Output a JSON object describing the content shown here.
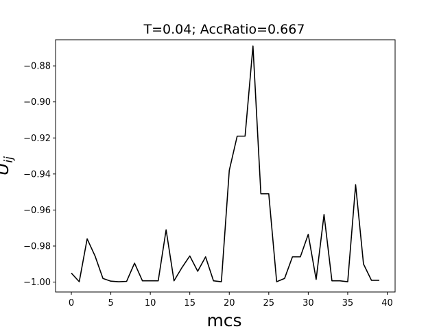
{
  "chart_data": {
    "type": "line",
    "title": "T=0.04; AccRatio=0.667",
    "xlabel": "mcs",
    "ylabel": "U",
    "ylabel_subscript": "ij",
    "xlim": [
      -2,
      41
    ],
    "ylim": [
      -1.0055,
      -0.8655
    ],
    "xticks": [
      0,
      5,
      10,
      15,
      20,
      25,
      30,
      35,
      40
    ],
    "xtick_labels": [
      "0",
      "5",
      "10",
      "15",
      "20",
      "25",
      "30",
      "35",
      "40"
    ],
    "yticks": [
      -1.0,
      -0.98,
      -0.96,
      -0.94,
      -0.92,
      -0.9,
      -0.88
    ],
    "ytick_labels": [
      "−1.00",
      "−0.98",
      "−0.96",
      "−0.94",
      "−0.92",
      "−0.90",
      "−0.88"
    ],
    "grid": false,
    "line_color": "#000000",
    "series": [
      {
        "x": [
          0,
          1,
          2,
          3,
          4,
          5,
          6,
          7,
          8,
          9,
          10,
          11,
          12,
          13,
          14,
          15,
          16,
          17,
          18,
          19,
          20,
          21,
          22,
          23,
          24,
          25,
          26,
          27,
          28,
          29,
          30,
          31,
          32,
          33,
          34,
          35,
          36,
          37,
          38,
          39
        ],
        "values": [
          -0.995,
          -0.9998,
          -0.976,
          -0.9855,
          -0.998,
          -0.9995,
          -0.9998,
          -0.9996,
          -0.9895,
          -0.9993,
          -0.9993,
          -0.9993,
          -0.971,
          -0.9993,
          -0.992,
          -0.9855,
          -0.994,
          -0.986,
          -0.9993,
          -0.9998,
          -0.938,
          -0.919,
          -0.919,
          -0.869,
          -0.951,
          -0.951,
          -0.9998,
          -0.998,
          -0.986,
          -0.986,
          -0.9735,
          -0.9985,
          -0.9625,
          -0.9993,
          -0.9993,
          -0.9998,
          -0.946,
          -0.99,
          -0.999,
          -0.999
        ]
      }
    ]
  }
}
